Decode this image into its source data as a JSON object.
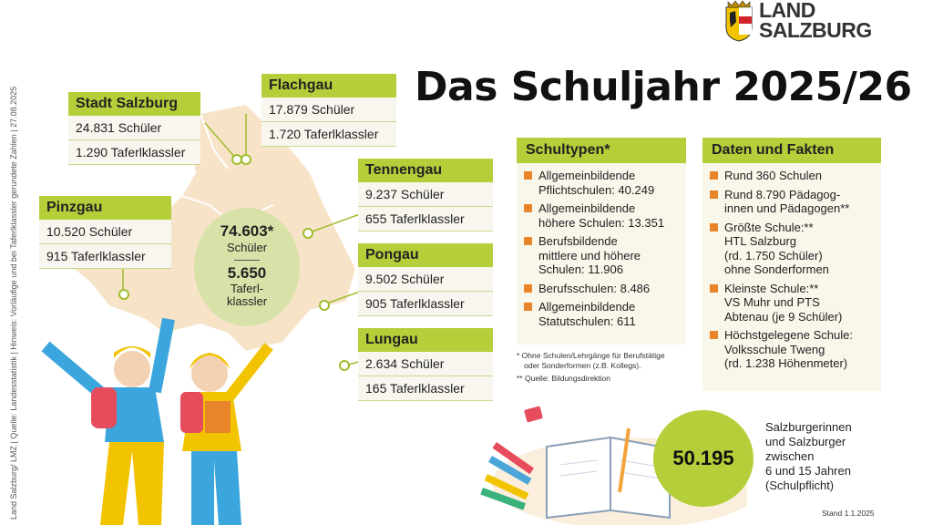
{
  "side_credit": "Land Salzburg/ LMZ | Quelle: Landesstatistik | Hinweis: Vorläufige und bei Taferlklassler gerundete Zahlen | 27.08.2025",
  "logo": {
    "line1": "LAND",
    "line2": "SALZBURG"
  },
  "title": "Das Schuljahr 2025/26",
  "regions": {
    "stadt_salzburg": {
      "name": "Stadt Salzburg",
      "schueler": "24.831 Schüler",
      "taferl": "1.290 Taferlklassler"
    },
    "flachgau": {
      "name": "Flachgau",
      "schueler": "17.879 Schüler",
      "taferl": "1.720 Taferlklassler"
    },
    "tennengau": {
      "name": "Tennengau",
      "schueler": "9.237 Schüler",
      "taferl": "655 Taferlklassler"
    },
    "pinzgau": {
      "name": "Pinzgau",
      "schueler": "10.520 Schüler",
      "taferl": "915 Taferlklassler"
    },
    "pongau": {
      "name": "Pongau",
      "schueler": "9.502 Schüler",
      "taferl": "905 Taferlklassler"
    },
    "lungau": {
      "name": "Lungau",
      "schueler": "2.634 Schüler",
      "taferl": "165 Taferlklassler"
    }
  },
  "total": {
    "schueler_value": "74.603*",
    "schueler_label": "Schüler",
    "taferl_value": "5.650",
    "taferl_label_1": "Taferl-",
    "taferl_label_2": "klassler"
  },
  "schultypen": {
    "title": "Schultypen*",
    "items": [
      {
        "l1": "Allgemeinbildende",
        "l2": "Pflichtschulen: 40.249"
      },
      {
        "l1": "Allgemeinbildende",
        "l2": "höhere Schulen: 13.351"
      },
      {
        "l1": "Berufsbildende",
        "l2": "mittlere und höhere",
        "l3": "Schulen: 11.906"
      },
      {
        "l1": "Berufsschulen: 8.486"
      },
      {
        "l1": "Allgemeinbildende",
        "l2": "Statutschulen: 611"
      }
    ],
    "note1": "* Ohne Schulen/Lehrgänge für Berufstätige",
    "note2": "oder Sonderformen (z.B. Kollegs).",
    "note3": "** Quelle: Bildungsdirektion"
  },
  "fakten": {
    "title": "Daten und Fakten",
    "items": [
      {
        "l1": "Rund 360 Schulen"
      },
      {
        "l1": "Rund 8.790 Pädagog-",
        "l2": "innen und Pädagogen**"
      },
      {
        "l1": "Größte Schule:**",
        "l2": "HTL Salzburg",
        "l3": "(rd. 1.750 Schüler)",
        "l4": "ohne Sonderformen"
      },
      {
        "l1": "Kleinste Schule:**",
        "l2": "VS Muhr und PTS",
        "l3": "Abtenau (je 9 Schüler)"
      },
      {
        "l1": "Höchstgelegene Schule:",
        "l2": "Volksschule Tweng",
        "l3": "(rd. 1.238 Höhenmeter)"
      }
    ]
  },
  "population": {
    "value": "50.195",
    "l1": "Salzburgerinnen",
    "l2": "und Salzburger",
    "l3": "zwischen",
    "l4": "6 und 15 Jahren",
    "l5": "(Schulpflicht)"
  },
  "stand": "Stand 1.1.2025",
  "colors": {
    "accent_green": "#b4cf3a",
    "bullet_orange": "#e8852a",
    "map_fill": "#f7e3c8",
    "panel_bg": "#f9f6ea"
  }
}
